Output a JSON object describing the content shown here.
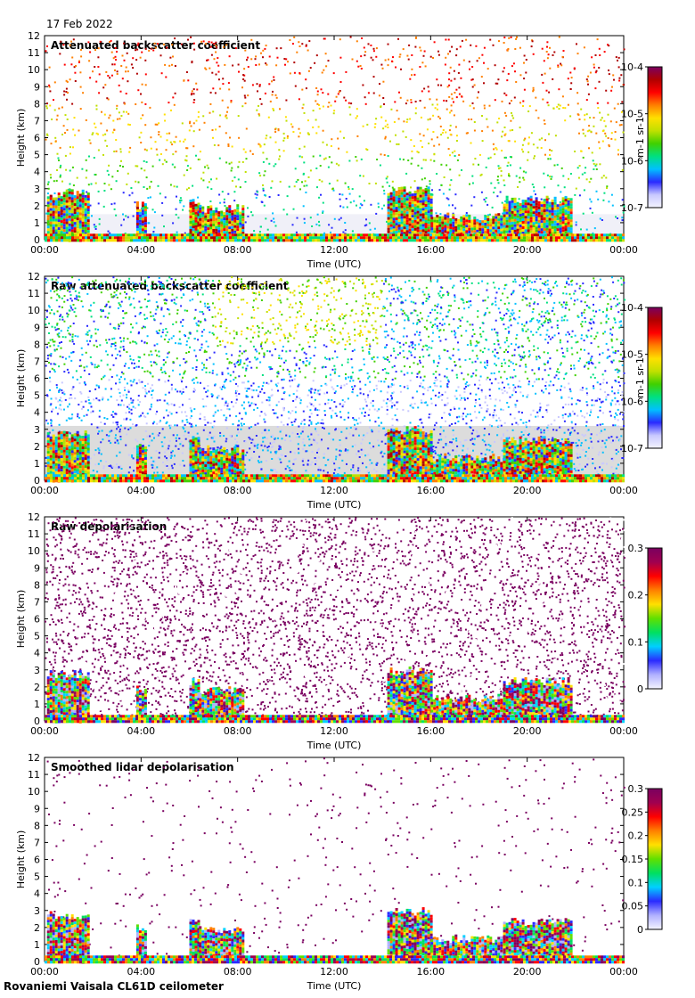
{
  "header": {
    "date": "17 Feb 2022"
  },
  "footer": {
    "site": "Rovaniemi Vaisala CL61D ceilometer"
  },
  "colors": {
    "background": "#ffffff",
    "no_signal_gray": "#dcdcdc",
    "backscatter_scale": [
      "#f4f4ff",
      "#c8c8ff",
      "#2a2aff",
      "#00c0ff",
      "#00e080",
      "#40d000",
      "#c0e000",
      "#ffe000",
      "#ff8000",
      "#ff0000",
      "#b00000",
      "#7a0060"
    ],
    "depol_scale": [
      "#f4f4ff",
      "#b0b0ff",
      "#2a2aff",
      "#00d0ff",
      "#00e060",
      "#60e000",
      "#ffe000",
      "#ff8000",
      "#ff0000",
      "#a00050",
      "#7a0060"
    ]
  },
  "chart_data": [
    {
      "type": "heatmap",
      "title": "Attenuated backscatter coefficient",
      "xlabel": "Time (UTC)",
      "ylabel": "Height (km)",
      "xlim": [
        "00:00",
        "00:00"
      ],
      "xticks": [
        "00:00",
        "04:00",
        "08:00",
        "12:00",
        "16:00",
        "20:00",
        "00:00"
      ],
      "ylim": [
        0,
        12
      ],
      "yticks": [
        "0",
        "1",
        "2",
        "3",
        "4",
        "5",
        "6",
        "7",
        "8",
        "9",
        "10",
        "11",
        "12"
      ],
      "colorbar": {
        "label": "m-1 sr-1",
        "scale": "log",
        "ticks": [
          "10-7",
          "10-6",
          "10-5",
          "10-4"
        ],
        "range": [
          1e-07,
          0.0001
        ]
      }
    },
    {
      "type": "heatmap",
      "title": "Raw attenuated backscatter coefficient",
      "xlabel": "Time (UTC)",
      "ylabel": "Height (km)",
      "xlim": [
        "00:00",
        "00:00"
      ],
      "xticks": [
        "00:00",
        "04:00",
        "08:00",
        "12:00",
        "16:00",
        "20:00",
        "00:00"
      ],
      "ylim": [
        0,
        12
      ],
      "yticks": [
        "0",
        "1",
        "2",
        "3",
        "4",
        "5",
        "6",
        "7",
        "8",
        "9",
        "10",
        "11",
        "12"
      ],
      "colorbar": {
        "label": "m-1 sr-1",
        "scale": "log",
        "ticks": [
          "10-7",
          "10-6",
          "10-5",
          "10-4"
        ],
        "range": [
          1e-07,
          0.0001
        ]
      }
    },
    {
      "type": "heatmap",
      "title": "Raw depolarisation",
      "xlabel": "Time (UTC)",
      "ylabel": "Height (km)",
      "xlim": [
        "00:00",
        "00:00"
      ],
      "xticks": [
        "00:00",
        "04:00",
        "08:00",
        "12:00",
        "16:00",
        "20:00",
        "00:00"
      ],
      "ylim": [
        0,
        12
      ],
      "yticks": [
        "0",
        "1",
        "2",
        "3",
        "4",
        "5",
        "6",
        "7",
        "8",
        "9",
        "10",
        "11",
        "12"
      ],
      "colorbar": {
        "label": "",
        "scale": "linear",
        "ticks": [
          "0",
          "0.1",
          "0.2",
          "0.3"
        ],
        "range": [
          0,
          0.3
        ]
      }
    },
    {
      "type": "heatmap",
      "title": "Smoothed lidar depolarisation",
      "xlabel": "Time (UTC)",
      "ylabel": "Height (km)",
      "xlim": [
        "00:00",
        "00:00"
      ],
      "xticks": [
        "00:00",
        "04:00",
        "08:00",
        "12:00",
        "16:00",
        "20:00",
        "00:00"
      ],
      "ylim": [
        0,
        12
      ],
      "yticks": [
        "0",
        "1",
        "2",
        "3",
        "4",
        "5",
        "6",
        "7",
        "8",
        "9",
        "10",
        "11",
        "12"
      ],
      "colorbar": {
        "label": "",
        "scale": "linear",
        "ticks": [
          "0",
          "0.05",
          "0.1",
          "0.15",
          "0.2",
          "0.25",
          "0.3"
        ],
        "range": [
          0,
          0.3
        ]
      }
    }
  ]
}
